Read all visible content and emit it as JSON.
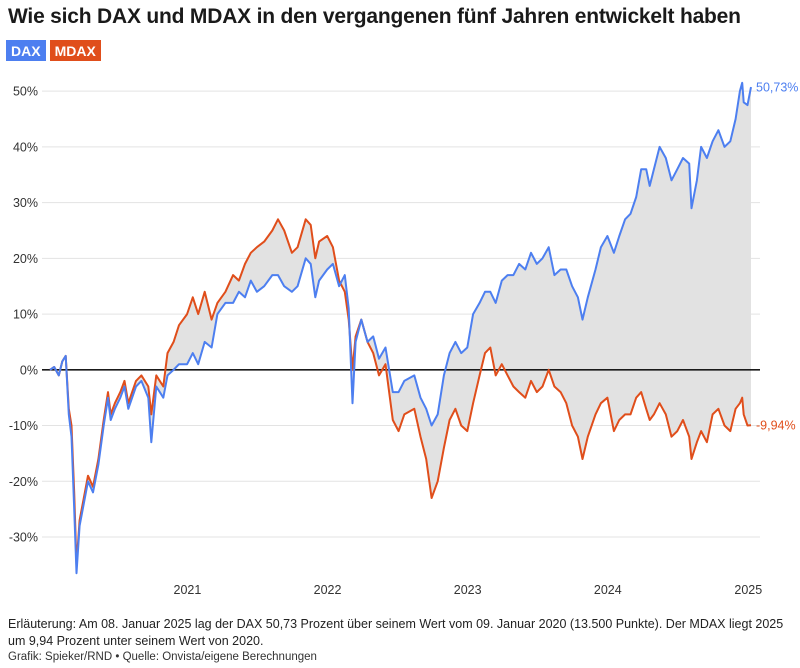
{
  "title": "Wie sich DAX und MDAX in den vergangenen fünf Jahren entwickelt haben",
  "note": "Erläuterung: Am 08. Januar 2025 lag der DAX 50,73 Prozent über seinem Wert vom 09. Januar 2020 (13.500 Punkte). Der MDAX liegt 2025 um 9,94 Prozent unter seinem Wert von 2020.",
  "credit": "Grafik: Spieker/RND • Quelle: Onvista/eigene Berechnungen",
  "colors": {
    "dax": "#4d7ff0",
    "mdax": "#e04e1b",
    "fill": "#e2e2e2",
    "zero": "#1a1a1a",
    "grid": "#e3e3e3"
  },
  "chart_data": {
    "type": "line",
    "title": "Wie sich DAX und MDAX in den vergangenen fünf Jahren entwickelt haben",
    "ylabel": "",
    "xlabel": "",
    "ylim": [
      -37,
      52
    ],
    "xlim": [
      "2020-01-09",
      "2025-01-08"
    ],
    "y_unit": "%",
    "y_ticks": [
      {
        "value": 50,
        "label": "50%"
      },
      {
        "value": 40,
        "label": "40%"
      },
      {
        "value": 30,
        "label": "30%"
      },
      {
        "value": 20,
        "label": "20%"
      },
      {
        "value": 10,
        "label": "10%"
      },
      {
        "value": 0,
        "label": "0%"
      },
      {
        "value": -10,
        "label": "-10%"
      },
      {
        "value": -20,
        "label": "-20%"
      },
      {
        "value": -30,
        "label": "-30%"
      }
    ],
    "x_ticks": [
      {
        "date": "2021-01-01",
        "label": "2021"
      },
      {
        "date": "2022-01-01",
        "label": "2022"
      },
      {
        "date": "2023-01-01",
        "label": "2023"
      },
      {
        "date": "2024-01-01",
        "label": "2024"
      },
      {
        "date": "2025-01-01",
        "label": "2025"
      }
    ],
    "legend": "top-left",
    "grid": "horizontal",
    "fill_between_series": true,
    "series": [
      {
        "name": "DAX",
        "color_key": "dax",
        "end_label": "50,73%",
        "points": [
          [
            "2020-01-09",
            0
          ],
          [
            "2020-01-20",
            0.5
          ],
          [
            "2020-02-01",
            -1
          ],
          [
            "2020-02-10",
            1.5
          ],
          [
            "2020-02-19",
            2.5
          ],
          [
            "2020-02-27",
            -8
          ],
          [
            "2020-03-05",
            -12
          ],
          [
            "2020-03-12",
            -25
          ],
          [
            "2020-03-18",
            -36.5
          ],
          [
            "2020-03-26",
            -28
          ],
          [
            "2020-04-06",
            -24
          ],
          [
            "2020-04-17",
            -20
          ],
          [
            "2020-04-30",
            -22
          ],
          [
            "2020-05-14",
            -17
          ],
          [
            "2020-05-28",
            -10
          ],
          [
            "2020-06-08",
            -5
          ],
          [
            "2020-06-15",
            -9
          ],
          [
            "2020-06-26",
            -7
          ],
          [
            "2020-07-10",
            -5
          ],
          [
            "2020-07-21",
            -3
          ],
          [
            "2020-07-31",
            -7
          ],
          [
            "2020-08-20",
            -3
          ],
          [
            "2020-09-03",
            -2
          ],
          [
            "2020-09-21",
            -5
          ],
          [
            "2020-09-29",
            -13
          ],
          [
            "2020-10-12",
            -3
          ],
          [
            "2020-10-30",
            -5
          ],
          [
            "2020-11-10",
            -1
          ],
          [
            "2020-11-26",
            0
          ],
          [
            "2020-12-10",
            1
          ],
          [
            "2020-12-31",
            1
          ],
          [
            "2021-01-15",
            3
          ],
          [
            "2021-01-29",
            1
          ],
          [
            "2021-02-15",
            5
          ],
          [
            "2021-03-05",
            4
          ],
          [
            "2021-03-20",
            10
          ],
          [
            "2021-04-10",
            12
          ],
          [
            "2021-04-30",
            12
          ],
          [
            "2021-05-15",
            14
          ],
          [
            "2021-05-31",
            13
          ],
          [
            "2021-06-15",
            16
          ],
          [
            "2021-07-01",
            14
          ],
          [
            "2021-07-20",
            15
          ],
          [
            "2021-08-10",
            17
          ],
          [
            "2021-08-25",
            17
          ],
          [
            "2021-09-10",
            15
          ],
          [
            "2021-09-30",
            14
          ],
          [
            "2021-10-15",
            15
          ],
          [
            "2021-11-05",
            20
          ],
          [
            "2021-11-18",
            19
          ],
          [
            "2021-11-30",
            13
          ],
          [
            "2021-12-10",
            16
          ],
          [
            "2021-12-31",
            18
          ],
          [
            "2022-01-15",
            19
          ],
          [
            "2022-01-31",
            15
          ],
          [
            "2022-02-15",
            17
          ],
          [
            "2022-02-25",
            11
          ],
          [
            "2022-03-07",
            -6
          ],
          [
            "2022-03-15",
            5
          ],
          [
            "2022-03-30",
            9
          ],
          [
            "2022-04-15",
            5
          ],
          [
            "2022-04-30",
            6
          ],
          [
            "2022-05-15",
            2
          ],
          [
            "2022-06-01",
            4
          ],
          [
            "2022-06-20",
            -4
          ],
          [
            "2022-07-05",
            -4
          ],
          [
            "2022-07-20",
            -2
          ],
          [
            "2022-08-15",
            -1
          ],
          [
            "2022-08-31",
            -5
          ],
          [
            "2022-09-15",
            -7
          ],
          [
            "2022-09-29",
            -10
          ],
          [
            "2022-10-15",
            -8
          ],
          [
            "2022-10-31",
            -1
          ],
          [
            "2022-11-15",
            3
          ],
          [
            "2022-11-30",
            5
          ],
          [
            "2022-12-15",
            3
          ],
          [
            "2022-12-31",
            4
          ],
          [
            "2023-01-15",
            10
          ],
          [
            "2023-02-01",
            12
          ],
          [
            "2023-02-15",
            14
          ],
          [
            "2023-03-01",
            14
          ],
          [
            "2023-03-15",
            12
          ],
          [
            "2023-03-31",
            16
          ],
          [
            "2023-04-15",
            17
          ],
          [
            "2023-04-30",
            17
          ],
          [
            "2023-05-15",
            19
          ],
          [
            "2023-05-31",
            18
          ],
          [
            "2023-06-15",
            21
          ],
          [
            "2023-06-30",
            19
          ],
          [
            "2023-07-15",
            20
          ],
          [
            "2023-07-31",
            22
          ],
          [
            "2023-08-15",
            17
          ],
          [
            "2023-08-31",
            18
          ],
          [
            "2023-09-15",
            18
          ],
          [
            "2023-09-30",
            15
          ],
          [
            "2023-10-15",
            13
          ],
          [
            "2023-10-27",
            9
          ],
          [
            "2023-11-10",
            13
          ],
          [
            "2023-11-30",
            18
          ],
          [
            "2023-12-14",
            22
          ],
          [
            "2023-12-31",
            24
          ],
          [
            "2024-01-17",
            21
          ],
          [
            "2024-01-31",
            24
          ],
          [
            "2024-02-15",
            27
          ],
          [
            "2024-02-29",
            28
          ],
          [
            "2024-03-15",
            31
          ],
          [
            "2024-03-28",
            36
          ],
          [
            "2024-04-10",
            36
          ],
          [
            "2024-04-19",
            33
          ],
          [
            "2024-04-30",
            36
          ],
          [
            "2024-05-15",
            40
          ],
          [
            "2024-05-31",
            38
          ],
          [
            "2024-06-15",
            34
          ],
          [
            "2024-06-30",
            36
          ],
          [
            "2024-07-15",
            38
          ],
          [
            "2024-07-31",
            37
          ],
          [
            "2024-08-06",
            29
          ],
          [
            "2024-08-20",
            34
          ],
          [
            "2024-08-31",
            40
          ],
          [
            "2024-09-15",
            38
          ],
          [
            "2024-09-30",
            41
          ],
          [
            "2024-10-15",
            43
          ],
          [
            "2024-10-31",
            40
          ],
          [
            "2024-11-15",
            41
          ],
          [
            "2024-11-29",
            45
          ],
          [
            "2024-12-10",
            50
          ],
          [
            "2024-12-16",
            51.5
          ],
          [
            "2024-12-20",
            48
          ],
          [
            "2024-12-30",
            47.5
          ],
          [
            "2025-01-08",
            50.73
          ]
        ]
      },
      {
        "name": "MDAX",
        "color_key": "mdax",
        "end_label": "-9,94%",
        "points": [
          [
            "2020-01-09",
            0
          ],
          [
            "2020-01-20",
            0.5
          ],
          [
            "2020-02-01",
            -1
          ],
          [
            "2020-02-10",
            1.5
          ],
          [
            "2020-02-19",
            2.5
          ],
          [
            "2020-02-27",
            -7
          ],
          [
            "2020-03-05",
            -10
          ],
          [
            "2020-03-12",
            -22
          ],
          [
            "2020-03-18",
            -35
          ],
          [
            "2020-03-26",
            -27
          ],
          [
            "2020-04-06",
            -23
          ],
          [
            "2020-04-17",
            -19
          ],
          [
            "2020-04-30",
            -21
          ],
          [
            "2020-05-14",
            -16
          ],
          [
            "2020-05-28",
            -9
          ],
          [
            "2020-06-08",
            -4
          ],
          [
            "2020-06-15",
            -8
          ],
          [
            "2020-06-26",
            -6
          ],
          [
            "2020-07-10",
            -4
          ],
          [
            "2020-07-21",
            -2
          ],
          [
            "2020-07-31",
            -6
          ],
          [
            "2020-08-20",
            -2
          ],
          [
            "2020-09-03",
            -1
          ],
          [
            "2020-09-21",
            -3
          ],
          [
            "2020-09-29",
            -8
          ],
          [
            "2020-10-12",
            -1
          ],
          [
            "2020-10-30",
            -3
          ],
          [
            "2020-11-10",
            3
          ],
          [
            "2020-11-26",
            5
          ],
          [
            "2020-12-10",
            8
          ],
          [
            "2020-12-31",
            10
          ],
          [
            "2021-01-15",
            13
          ],
          [
            "2021-01-29",
            10
          ],
          [
            "2021-02-15",
            14
          ],
          [
            "2021-03-05",
            9
          ],
          [
            "2021-03-20",
            12
          ],
          [
            "2021-04-10",
            14
          ],
          [
            "2021-04-30",
            17
          ],
          [
            "2021-05-15",
            16
          ],
          [
            "2021-05-31",
            19
          ],
          [
            "2021-06-15",
            21
          ],
          [
            "2021-07-01",
            22
          ],
          [
            "2021-07-20",
            23
          ],
          [
            "2021-08-10",
            25
          ],
          [
            "2021-08-25",
            27
          ],
          [
            "2021-09-10",
            25
          ],
          [
            "2021-09-30",
            21
          ],
          [
            "2021-10-15",
            22
          ],
          [
            "2021-11-05",
            27
          ],
          [
            "2021-11-18",
            26
          ],
          [
            "2021-11-30",
            20
          ],
          [
            "2021-12-10",
            23
          ],
          [
            "2021-12-31",
            24
          ],
          [
            "2022-01-15",
            22
          ],
          [
            "2022-01-31",
            16
          ],
          [
            "2022-02-15",
            14
          ],
          [
            "2022-02-25",
            9
          ],
          [
            "2022-03-07",
            0
          ],
          [
            "2022-03-15",
            6
          ],
          [
            "2022-03-30",
            9
          ],
          [
            "2022-04-15",
            5
          ],
          [
            "2022-04-30",
            3
          ],
          [
            "2022-05-15",
            -1
          ],
          [
            "2022-06-01",
            1
          ],
          [
            "2022-06-20",
            -9
          ],
          [
            "2022-07-05",
            -11
          ],
          [
            "2022-07-20",
            -8
          ],
          [
            "2022-08-15",
            -7
          ],
          [
            "2022-08-31",
            -12
          ],
          [
            "2022-09-15",
            -16
          ],
          [
            "2022-09-29",
            -23
          ],
          [
            "2022-10-15",
            -20
          ],
          [
            "2022-10-31",
            -14
          ],
          [
            "2022-11-15",
            -9
          ],
          [
            "2022-11-30",
            -7
          ],
          [
            "2022-12-15",
            -10
          ],
          [
            "2022-12-31",
            -11
          ],
          [
            "2023-01-15",
            -6
          ],
          [
            "2023-02-01",
            -1
          ],
          [
            "2023-02-15",
            3
          ],
          [
            "2023-03-01",
            4
          ],
          [
            "2023-03-15",
            -1
          ],
          [
            "2023-03-31",
            1
          ],
          [
            "2023-04-15",
            -1
          ],
          [
            "2023-04-30",
            -3
          ],
          [
            "2023-05-15",
            -4
          ],
          [
            "2023-05-31",
            -5
          ],
          [
            "2023-06-15",
            -2
          ],
          [
            "2023-06-30",
            -4
          ],
          [
            "2023-07-15",
            -3
          ],
          [
            "2023-07-31",
            0
          ],
          [
            "2023-08-15",
            -3
          ],
          [
            "2023-08-31",
            -4
          ],
          [
            "2023-09-15",
            -6
          ],
          [
            "2023-09-30",
            -10
          ],
          [
            "2023-10-15",
            -12
          ],
          [
            "2023-10-27",
            -16
          ],
          [
            "2023-11-10",
            -12
          ],
          [
            "2023-11-30",
            -8
          ],
          [
            "2023-12-14",
            -6
          ],
          [
            "2023-12-31",
            -5
          ],
          [
            "2024-01-17",
            -11
          ],
          [
            "2024-01-31",
            -9
          ],
          [
            "2024-02-15",
            -8
          ],
          [
            "2024-02-29",
            -8
          ],
          [
            "2024-03-15",
            -5
          ],
          [
            "2024-03-28",
            -4
          ],
          [
            "2024-04-10",
            -7
          ],
          [
            "2024-04-19",
            -9
          ],
          [
            "2024-04-30",
            -8
          ],
          [
            "2024-05-15",
            -6
          ],
          [
            "2024-05-31",
            -8
          ],
          [
            "2024-06-15",
            -12
          ],
          [
            "2024-06-30",
            -11
          ],
          [
            "2024-07-15",
            -9
          ],
          [
            "2024-07-31",
            -12
          ],
          [
            "2024-08-06",
            -16
          ],
          [
            "2024-08-20",
            -13
          ],
          [
            "2024-08-31",
            -11
          ],
          [
            "2024-09-15",
            -13
          ],
          [
            "2024-09-30",
            -8
          ],
          [
            "2024-10-15",
            -7
          ],
          [
            "2024-10-31",
            -10
          ],
          [
            "2024-11-15",
            -11
          ],
          [
            "2024-11-29",
            -7
          ],
          [
            "2024-12-10",
            -6
          ],
          [
            "2024-12-16",
            -5
          ],
          [
            "2024-12-20",
            -8
          ],
          [
            "2024-12-30",
            -10
          ],
          [
            "2025-01-08",
            -9.94
          ]
        ]
      }
    ]
  }
}
